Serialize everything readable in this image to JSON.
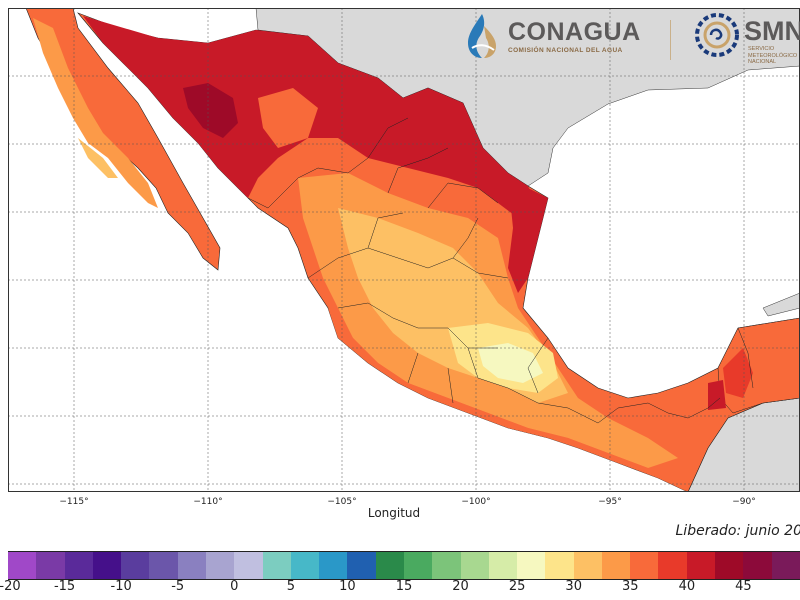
{
  "map": {
    "xlabel": "Longitud",
    "x_ticks": [
      "−115°",
      "−110°",
      "−105°",
      "−100°",
      "−95°",
      "−90°"
    ],
    "x_tick_values": [
      -115,
      -110,
      -105,
      -100,
      -95,
      -90
    ],
    "released": "Liberado: junio 20",
    "land_color_outside": "#d9d9d9",
    "sea_color": "#ffffff"
  },
  "logos": {
    "conagua": {
      "name": "CONAGUA",
      "subtitle": "COMISIÓN NACIONAL DEL AGUA",
      "icon": "water-drop-icon"
    },
    "smn": {
      "name": "SMN",
      "subtitle": "SERVICIO METEOROLÓGICO NACIONAL",
      "icon": "sun-swirl-icon"
    }
  },
  "colorbar": {
    "labels": [
      "-20",
      "-15",
      "-10",
      "-5",
      "0",
      "5",
      "10",
      "15",
      "20",
      "25",
      "30",
      "35",
      "40",
      "45"
    ],
    "label_values": [
      -20,
      -15,
      -10,
      -5,
      0,
      5,
      10,
      15,
      20,
      25,
      30,
      35,
      40,
      45
    ],
    "colors": [
      "#a048c8",
      "#7a3aa6",
      "#5a2a9a",
      "#45108a",
      "#5a3d9e",
      "#6b56aa",
      "#8a80c0",
      "#a8a4d0",
      "#c0bfe0",
      "#7ccdc0",
      "#47b8c8",
      "#2a98c8",
      "#2060b0",
      "#2a8a4a",
      "#4aaa60",
      "#7cc47a",
      "#a8d890",
      "#d6eca8",
      "#f6f8c0",
      "#fde48a",
      "#fdc064",
      "#fc9a48",
      "#f86a3a",
      "#e83a2a",
      "#c81a28",
      "#9e0a28",
      "#8c0a3a",
      "#7a1a5a"
    ]
  }
}
